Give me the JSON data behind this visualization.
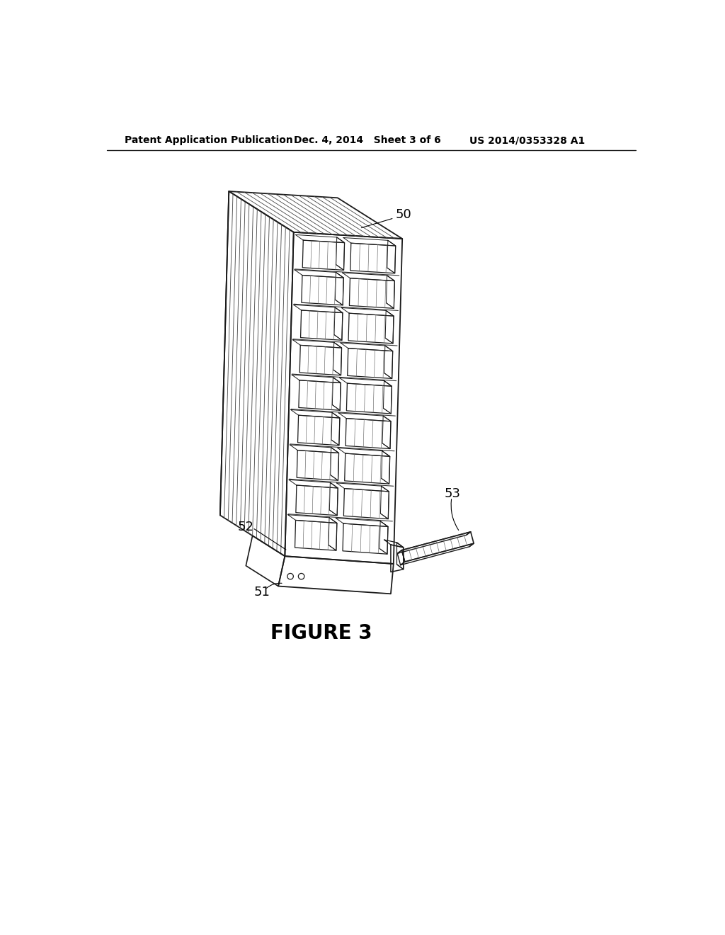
{
  "background_color": "#ffffff",
  "header_left": "Patent Application Publication",
  "header_mid": "Dec. 4, 2014   Sheet 3 of 6",
  "header_right": "US 2014/0353328 A1",
  "figure_label": "FIGURE 3",
  "ref_50": "50",
  "ref_51": "51",
  "ref_52": "52",
  "ref_53": "53",
  "header_fontsize": 10,
  "label_fontsize": 13,
  "figure_label_fontsize": 20,
  "line_color": "#1a1a1a",
  "hatch_color": "#555555"
}
